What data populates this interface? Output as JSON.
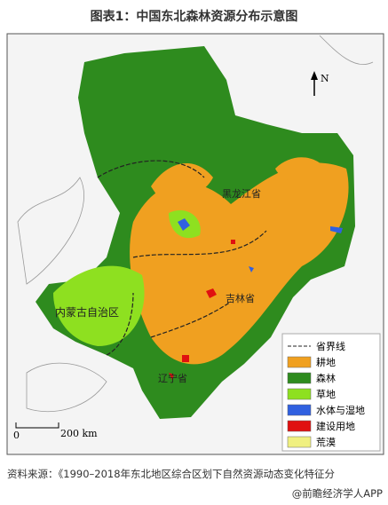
{
  "title": "图表1：中国东北森林资源分布示意图",
  "map": {
    "labels": [
      "黑龙江省",
      "吉林省",
      "辽宁省",
      "内蒙古自治区"
    ],
    "north": "N",
    "scale": [
      "0",
      "200 km"
    ]
  },
  "legend": [
    {
      "label": "省界线",
      "color": "#ffffff"
    },
    {
      "label": "耕地",
      "color": "#f0a020"
    },
    {
      "label": "森林",
      "color": "#2e8b1e"
    },
    {
      "label": "草地",
      "color": "#8ee020"
    },
    {
      "label": "水体与湿地",
      "color": "#3060e0"
    },
    {
      "label": "建设用地",
      "color": "#e01010"
    },
    {
      "label": "荒漠",
      "color": "#f0f080"
    }
  ],
  "source": "资料来源：《1990–2018年东北地区综合区划下自然资源动态变化特征分",
  "brand": "@前瞻经济学人APP"
}
